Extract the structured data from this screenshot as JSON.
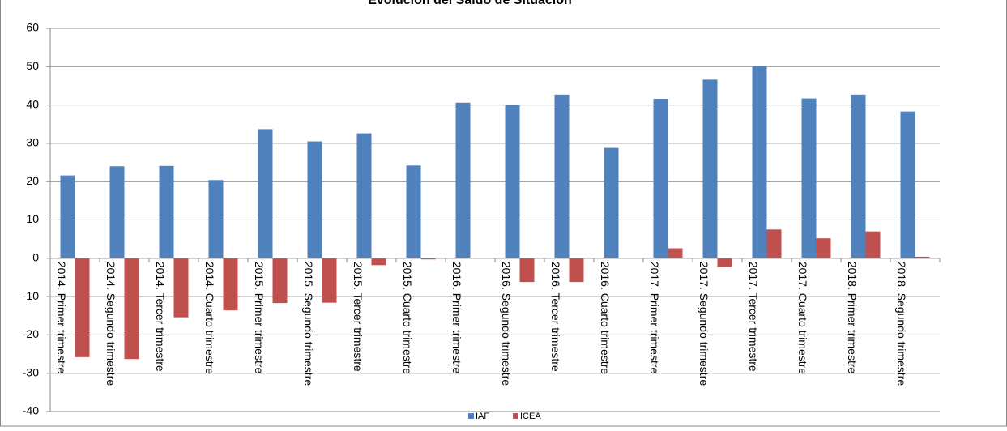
{
  "chart_data": {
    "type": "bar",
    "title": "Evolución del Saldo de Situación",
    "categories": [
      "2014. Primer trimestre",
      "2014. Segundo trimestre",
      "2014. Tercer trimestre",
      "2014. Cuarto trimestre",
      "2015. Primer trimestre",
      "2015. Segundo trimestre",
      "2015. Tercer trimestre",
      "2015. Cuarto trimestre",
      "2016. Primer trimestre",
      "2016. Segundo trimestre",
      "2016. Tercer trimestre",
      "2016. Cuarto trimestre",
      "2017. Primer trimestre",
      "2017. Segundo trimestre",
      "2017. Tercer trimestre",
      "2017. Cuarto trimestre",
      "2018. Primer trimestre",
      "2018. Segundo trimestre"
    ],
    "series": [
      {
        "name": "IAF",
        "color": "#4f81bd",
        "values": [
          21.6,
          24,
          24.1,
          20.4,
          33.7,
          30.5,
          32.6,
          24.2,
          40.6,
          40,
          42.7,
          28.8,
          41.6,
          46.6,
          50.2,
          41.7,
          42.7,
          38.3
        ]
      },
      {
        "name": "ICEA",
        "color": "#c0504d",
        "values": [
          -25.8,
          -26.3,
          -15.4,
          -13.6,
          -11.7,
          -11.6,
          -1.8,
          -0.3,
          0,
          -6.2,
          -6.2,
          0,
          2.6,
          -2.3,
          7.5,
          5.2,
          7,
          0.4
        ]
      }
    ],
    "ylim": [
      -40,
      60
    ],
    "yticks": [
      -40,
      -30,
      -20,
      -10,
      0,
      10,
      20,
      30,
      40,
      50,
      60
    ],
    "grid": true
  }
}
